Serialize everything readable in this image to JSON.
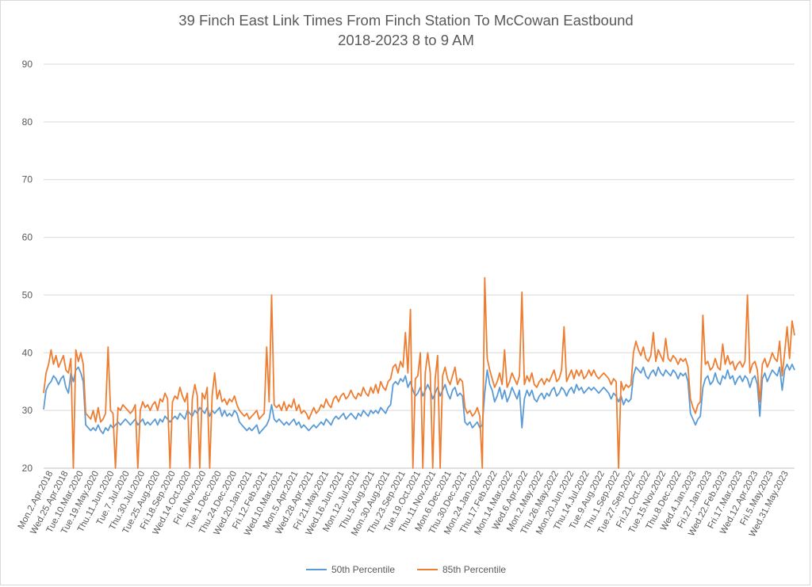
{
  "chart_data": {
    "type": "line",
    "title": "39 Finch East Link Times From Finch Station To McCowan Eastbound",
    "subtitle": "2018-2023 8 to 9 AM",
    "xlabel": "",
    "ylabel": "",
    "ylim": [
      20,
      90
    ],
    "yticks": [
      "90",
      "80",
      "70",
      "60",
      "50",
      "40",
      "30",
      "20"
    ],
    "grid": true,
    "legend": "bottom",
    "x_tick_labels": [
      "Mon.2.Apr.2018",
      "Wed.25.Apr.2018",
      "Tue.10.Mar.2020",
      "Tue.19.May.2020",
      "Thu.11.Jun.2020",
      "Tue.7.Jul.2020",
      "Thu.30.Jul.2020",
      "Tue.25.Aug.2020",
      "Fri.18.Sep.2020",
      "Wed.14.Oct.2020",
      "Fri.6.Nov.2020",
      "Tue.1.Dec.2020",
      "Thu.24.Dec.2020",
      "Wed.20.Jan.2021",
      "Fri.12.Feb.2021",
      "Wed.10.Mar.2021",
      "Mon.5.Apr.2021",
      "Wed.28.Apr.2021",
      "Fri.21.May.2021",
      "Wed.16.Jun.2021",
      "Mon.12.Jul.2021",
      "Thu.5.Aug.2021",
      "Mon.30.Aug.2021",
      "Thu.23.Sep.2021",
      "Tue.19.Oct.2021",
      "Thu.11.Nov.2021",
      "Mon.6.Dec.2021",
      "Thu.30.Dec.2021",
      "Mon.24.Jan.2022",
      "Thu.17.Feb.2022",
      "Mon.14.Mar.2022",
      "Wed.6.Apr.2022",
      "Mon.2.May.2022",
      "Thu.26.May.2022",
      "Mon.20.Jun.2022",
      "Thu.14.Jul.2022",
      "Tue.9.Aug.2022",
      "Thu.1.Sep.2022",
      "Tue.27.Sep.2022",
      "Fri.21.Oct.2022",
      "Tue.15.Nov.2022",
      "Thu.8.Dec.2022",
      "Wed.4.Jan.2023",
      "Fri.27.Jan.2023",
      "Wed.22.Feb.2023",
      "Fri.17.Mar.2023",
      "Wed.12.Apr.2023",
      "Fri.5.May.2023",
      "Wed.31.May.2023"
    ],
    "series": [
      {
        "name": "50th Percentile",
        "color": "#5b9bd5",
        "values": [
          30.2,
          33.5,
          34.5,
          35.0,
          36.0,
          35.5,
          34.5,
          35.5,
          36.0,
          34.0,
          33.0,
          36.5,
          35.0,
          37.0,
          37.5,
          36.5,
          35.0,
          27.5,
          27.0,
          26.5,
          27.0,
          26.5,
          27.5,
          26.5,
          26.0,
          27.0,
          26.5,
          27.5,
          27.0,
          27.5,
          28.0,
          27.5,
          28.0,
          28.5,
          28.0,
          27.5,
          28.0,
          28.5,
          27.5,
          28.0,
          28.5,
          27.5,
          28.0,
          27.5,
          28.0,
          28.5,
          27.5,
          28.5,
          28.0,
          29.0,
          28.5,
          28.0,
          28.5,
          29.0,
          28.5,
          29.5,
          29.0,
          28.5,
          30.0,
          29.5,
          29.0,
          30.0,
          29.5,
          30.5,
          30.0,
          29.5,
          30.5,
          29.0,
          30.0,
          29.5,
          30.0,
          30.5,
          29.0,
          30.0,
          29.0,
          29.5,
          29.0,
          30.0,
          29.5,
          28.0,
          27.5,
          27.0,
          26.5,
          27.0,
          26.5,
          27.0,
          27.5,
          26.0,
          26.5,
          27.0,
          27.5,
          28.5,
          31.0,
          28.5,
          28.0,
          28.5,
          28.0,
          27.5,
          28.0,
          27.5,
          28.0,
          28.5,
          27.5,
          28.0,
          27.0,
          27.5,
          27.0,
          26.5,
          27.0,
          27.5,
          27.0,
          27.5,
          28.0,
          27.5,
          28.5,
          28.0,
          27.5,
          28.5,
          29.0,
          28.5,
          29.0,
          29.5,
          28.5,
          29.0,
          29.5,
          29.0,
          28.5,
          29.5,
          29.0,
          30.0,
          29.5,
          29.0,
          30.0,
          29.5,
          30.0,
          29.5,
          30.5,
          30.0,
          29.5,
          30.5,
          31.0,
          34.5,
          35.0,
          34.5,
          35.5,
          35.0,
          36.0,
          34.0,
          35.0,
          33.5,
          32.5,
          33.0,
          34.0,
          32.5,
          33.5,
          34.5,
          33.5,
          32.0,
          33.0,
          34.0,
          32.5,
          33.5,
          34.5,
          33.0,
          32.0,
          33.5,
          34.0,
          32.5,
          33.0,
          32.5,
          28.0,
          27.5,
          28.0,
          27.0,
          27.5,
          28.0,
          27.0,
          27.5,
          33.0,
          37.0,
          34.5,
          33.5,
          31.5,
          32.5,
          34.0,
          32.0,
          33.5,
          31.5,
          32.5,
          34.0,
          33.0,
          32.0,
          33.5,
          27.0,
          32.0,
          33.5,
          32.5,
          33.5,
          32.0,
          31.5,
          32.5,
          33.0,
          32.0,
          33.0,
          32.5,
          33.5,
          34.0,
          32.5,
          33.0,
          34.0,
          33.5,
          32.5,
          33.5,
          34.0,
          33.0,
          34.5,
          33.5,
          34.0,
          33.0,
          33.5,
          34.0,
          33.5,
          34.0,
          33.5,
          33.0,
          33.5,
          34.0,
          33.5,
          33.0,
          32.0,
          33.0,
          32.5,
          31.5,
          32.5,
          31.0,
          32.0,
          31.5,
          32.0,
          36.0,
          37.5,
          37.0,
          36.5,
          37.5,
          36.0,
          35.5,
          36.5,
          37.0,
          36.0,
          37.5,
          36.5,
          36.0,
          37.0,
          36.5,
          36.0,
          37.0,
          36.5,
          35.5,
          36.5,
          36.0,
          36.5,
          35.0,
          29.5,
          28.5,
          27.5,
          28.5,
          29.0,
          34.0,
          35.5,
          36.0,
          34.5,
          35.0,
          36.5,
          35.0,
          34.5,
          36.0,
          35.5,
          37.0,
          35.5,
          36.0,
          34.5,
          35.5,
          36.0,
          35.0,
          36.0,
          35.5,
          34.0,
          35.5,
          36.0,
          34.5,
          29.0,
          35.5,
          36.5,
          35.0,
          36.0,
          37.0,
          36.5,
          36.0,
          37.5,
          33.5,
          37.0,
          38.0,
          37.0,
          38.0,
          37.0
        ]
      },
      {
        "name": "85th Percentile",
        "color": "#ed7d31",
        "values": [
          33.0,
          36.5,
          38.0,
          40.5,
          38.0,
          39.5,
          37.5,
          38.5,
          39.5,
          37.0,
          36.5,
          39.0,
          20.0,
          40.5,
          38.5,
          40.0,
          38.0,
          29.5,
          29.0,
          28.5,
          30.0,
          28.0,
          30.5,
          28.0,
          28.5,
          29.5,
          41.0,
          30.0,
          29.5,
          20.0,
          30.5,
          30.0,
          31.0,
          30.5,
          30.0,
          29.5,
          30.0,
          31.0,
          20.0,
          30.0,
          31.5,
          30.5,
          31.0,
          30.0,
          31.0,
          31.5,
          30.0,
          32.0,
          31.5,
          33.0,
          32.0,
          20.0,
          31.5,
          32.5,
          32.0,
          34.0,
          32.5,
          31.5,
          33.0,
          20.0,
          32.0,
          34.5,
          32.5,
          20.0,
          33.0,
          32.0,
          34.0,
          20.0,
          32.5,
          36.5,
          32.0,
          33.5,
          31.5,
          32.0,
          31.0,
          32.0,
          31.5,
          32.5,
          31.0,
          30.0,
          29.5,
          29.0,
          29.5,
          28.5,
          29.0,
          29.5,
          30.0,
          28.5,
          29.0,
          29.5,
          41.0,
          31.5,
          50.0,
          31.0,
          30.5,
          31.0,
          30.0,
          31.5,
          30.0,
          31.0,
          30.5,
          32.0,
          30.0,
          31.0,
          29.5,
          30.0,
          29.5,
          28.5,
          29.5,
          30.5,
          29.5,
          30.0,
          31.0,
          30.5,
          32.0,
          31.0,
          30.5,
          32.0,
          32.5,
          31.5,
          32.5,
          33.0,
          32.0,
          32.5,
          33.5,
          32.5,
          32.0,
          33.0,
          32.5,
          34.0,
          33.0,
          32.5,
          34.0,
          33.0,
          34.5,
          33.0,
          35.0,
          34.0,
          33.5,
          35.0,
          35.5,
          37.5,
          38.0,
          36.5,
          38.5,
          37.5,
          43.5,
          36.5,
          47.5,
          20.0,
          35.5,
          36.0,
          40.0,
          20.0,
          36.5,
          40.0,
          36.5,
          20.0,
          35.5,
          39.5,
          20.0,
          36.0,
          37.5,
          35.5,
          34.5,
          36.0,
          37.5,
          34.5,
          35.5,
          35.0,
          30.5,
          29.5,
          30.0,
          29.0,
          29.5,
          30.5,
          29.0,
          20.0,
          53.0,
          39.0,
          37.0,
          35.5,
          34.0,
          35.0,
          36.5,
          34.5,
          40.5,
          34.0,
          35.0,
          36.5,
          35.5,
          34.5,
          36.0,
          50.5,
          34.5,
          36.0,
          35.0,
          36.5,
          34.5,
          34.0,
          35.0,
          35.5,
          34.5,
          35.5,
          35.0,
          36.0,
          37.0,
          35.0,
          35.5,
          37.0,
          44.5,
          35.0,
          36.0,
          37.0,
          35.5,
          37.0,
          36.0,
          37.0,
          35.5,
          36.0,
          37.0,
          36.0,
          37.0,
          36.0,
          35.5,
          36.0,
          36.5,
          36.0,
          35.5,
          34.5,
          35.5,
          35.0,
          20.0,
          35.0,
          33.5,
          34.5,
          34.0,
          34.5,
          40.0,
          42.0,
          40.5,
          39.5,
          41.0,
          39.0,
          38.5,
          39.5,
          43.5,
          38.5,
          40.5,
          39.5,
          38.5,
          42.5,
          39.0,
          38.5,
          39.5,
          39.0,
          38.0,
          39.0,
          38.5,
          39.0,
          37.5,
          32.0,
          30.5,
          29.5,
          31.0,
          31.5,
          46.5,
          38.0,
          38.5,
          37.0,
          37.5,
          39.0,
          37.5,
          37.0,
          41.5,
          38.0,
          39.5,
          38.0,
          38.5,
          37.0,
          38.0,
          38.5,
          37.5,
          38.5,
          50.0,
          36.5,
          38.0,
          38.5,
          37.0,
          31.5,
          38.0,
          39.0,
          37.5,
          38.5,
          40.0,
          39.0,
          38.5,
          42.0,
          36.0,
          40.0,
          44.5,
          39.0,
          45.5,
          43.0
        ]
      }
    ]
  }
}
